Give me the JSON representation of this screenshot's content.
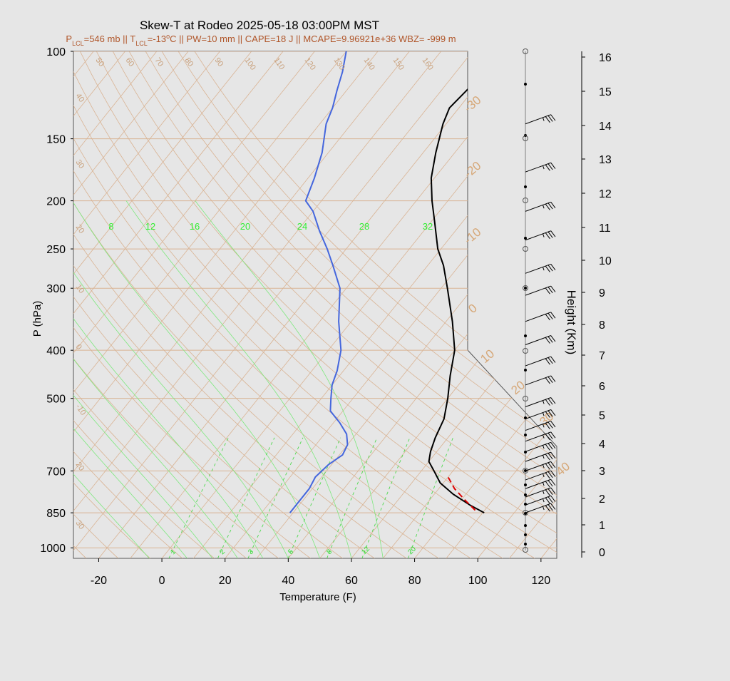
{
  "chart_data": {
    "type": "skew-t",
    "title": "Skew-T at Rodeo 2025-05-18 03:00PM MST",
    "subtitle": {
      "segments": [
        {
          "t": "P",
          "sub": false
        },
        {
          "t": "LCL",
          "sub": true
        },
        {
          "t": "=546 mb || T",
          "sub": false
        },
        {
          "t": "LCL",
          "sub": true
        },
        {
          "t": "=-13",
          "sub": false
        },
        {
          "t": "o",
          "sup": true
        },
        {
          "t": "C || PW=10 mm || CAPE=18 J || MCAPE=9.96921e+36 WBZ= -999 m",
          "sub": false
        }
      ]
    },
    "xlabel": "Temperature (F)",
    "ylabel": "P (hPa)",
    "y2label": "Height (Km)",
    "xlim": [
      -28,
      125
    ],
    "ylim": [
      1050,
      100
    ],
    "x_ticks": [
      -20,
      0,
      20,
      40,
      60,
      80,
      100,
      120
    ],
    "p_ticks": [
      100,
      150,
      200,
      250,
      300,
      400,
      500,
      700,
      850,
      1000
    ],
    "height_ticks": [
      0,
      1,
      2,
      3,
      4,
      5,
      6,
      7,
      8,
      9,
      10,
      11,
      12,
      13,
      14,
      15,
      16
    ],
    "isotherm_labels": [
      "-30",
      "-20",
      "-10",
      "0",
      "10",
      "20",
      "30",
      "40"
    ],
    "top_labels": [
      "50",
      "60",
      "70",
      "80",
      "90",
      "100",
      "110",
      "120",
      "130",
      "140",
      "150",
      "160"
    ],
    "left_labels": [
      "40",
      "30",
      "20",
      "10",
      "0",
      "-10",
      "20",
      "30"
    ],
    "mixing_ratio_labels": [
      "1",
      "2",
      "3",
      "5",
      "8",
      "12",
      "20"
    ],
    "theta_e_labels": [
      "8",
      "12",
      "16",
      "20",
      "24",
      "28",
      "32"
    ],
    "series": [
      {
        "name": "temperature",
        "color": "#000000",
        "points": [
          [
            850,
            90.5
          ],
          [
            820,
            84
          ],
          [
            780,
            76
          ],
          [
            740,
            69
          ],
          [
            700,
            64
          ],
          [
            670,
            60
          ],
          [
            640,
            58
          ],
          [
            600,
            56
          ],
          [
            550,
            54
          ],
          [
            500,
            50
          ],
          [
            450,
            45
          ],
          [
            400,
            40
          ],
          [
            350,
            32
          ],
          [
            300,
            22
          ],
          [
            270,
            15
          ],
          [
            250,
            9
          ],
          [
            220,
            1
          ],
          [
            200,
            -5
          ],
          [
            180,
            -11
          ],
          [
            160,
            -16
          ],
          [
            140,
            -21
          ],
          [
            130,
            -23
          ],
          [
            120,
            -22
          ],
          [
            110,
            -21
          ],
          [
            100,
            -21
          ]
        ]
      },
      {
        "name": "dewpoint",
        "color": "#4466dd",
        "points": [
          [
            850,
            29
          ],
          [
            800,
            29
          ],
          [
            760,
            29
          ],
          [
            720,
            28
          ],
          [
            680,
            29
          ],
          [
            650,
            31
          ],
          [
            620,
            30
          ],
          [
            590,
            27
          ],
          [
            560,
            22
          ],
          [
            530,
            16
          ],
          [
            500,
            13
          ],
          [
            470,
            10
          ],
          [
            440,
            8
          ],
          [
            400,
            4
          ],
          [
            350,
            -4
          ],
          [
            300,
            -12
          ],
          [
            270,
            -20
          ],
          [
            250,
            -26
          ],
          [
            230,
            -33
          ],
          [
            210,
            -40
          ],
          [
            200,
            -45
          ],
          [
            180,
            -48
          ],
          [
            160,
            -52
          ],
          [
            140,
            -58
          ],
          [
            130,
            -60
          ],
          [
            120,
            -63
          ],
          [
            110,
            -66
          ],
          [
            100,
            -70
          ]
        ]
      },
      {
        "name": "parcel",
        "color": "#dd0000",
        "points": [
          [
            840,
            87
          ],
          [
            800,
            81
          ],
          [
            760,
            75
          ],
          [
            720,
            70
          ]
        ]
      }
    ],
    "wind_barbs": [
      {
        "p": 850,
        "dir": 250,
        "kt": 35
      },
      {
        "p": 820,
        "dir": 250,
        "kt": 35
      },
      {
        "p": 790,
        "dir": 250,
        "kt": 35
      },
      {
        "p": 760,
        "dir": 250,
        "kt": 35
      },
      {
        "p": 730,
        "dir": 250,
        "kt": 35
      },
      {
        "p": 700,
        "dir": 250,
        "kt": 35
      },
      {
        "p": 670,
        "dir": 250,
        "kt": 35
      },
      {
        "p": 640,
        "dir": 250,
        "kt": 35
      },
      {
        "p": 610,
        "dir": 250,
        "kt": 35
      },
      {
        "p": 580,
        "dir": 250,
        "kt": 35
      },
      {
        "p": 550,
        "dir": 250,
        "kt": 35
      },
      {
        "p": 520,
        "dir": 250,
        "kt": 35
      },
      {
        "p": 470,
        "dir": 250,
        "kt": 30
      },
      {
        "p": 430,
        "dir": 250,
        "kt": 30
      },
      {
        "p": 390,
        "dir": 250,
        "kt": 30
      },
      {
        "p": 350,
        "dir": 250,
        "kt": 30
      },
      {
        "p": 310,
        "dir": 250,
        "kt": 30
      },
      {
        "p": 280,
        "dir": 250,
        "kt": 35
      },
      {
        "p": 240,
        "dir": 250,
        "kt": 35
      },
      {
        "p": 210,
        "dir": 250,
        "kt": 35
      },
      {
        "p": 175,
        "dir": 250,
        "kt": 35
      },
      {
        "p": 140,
        "dir": 250,
        "kt": 35
      }
    ],
    "grid": true,
    "legend": "none"
  }
}
